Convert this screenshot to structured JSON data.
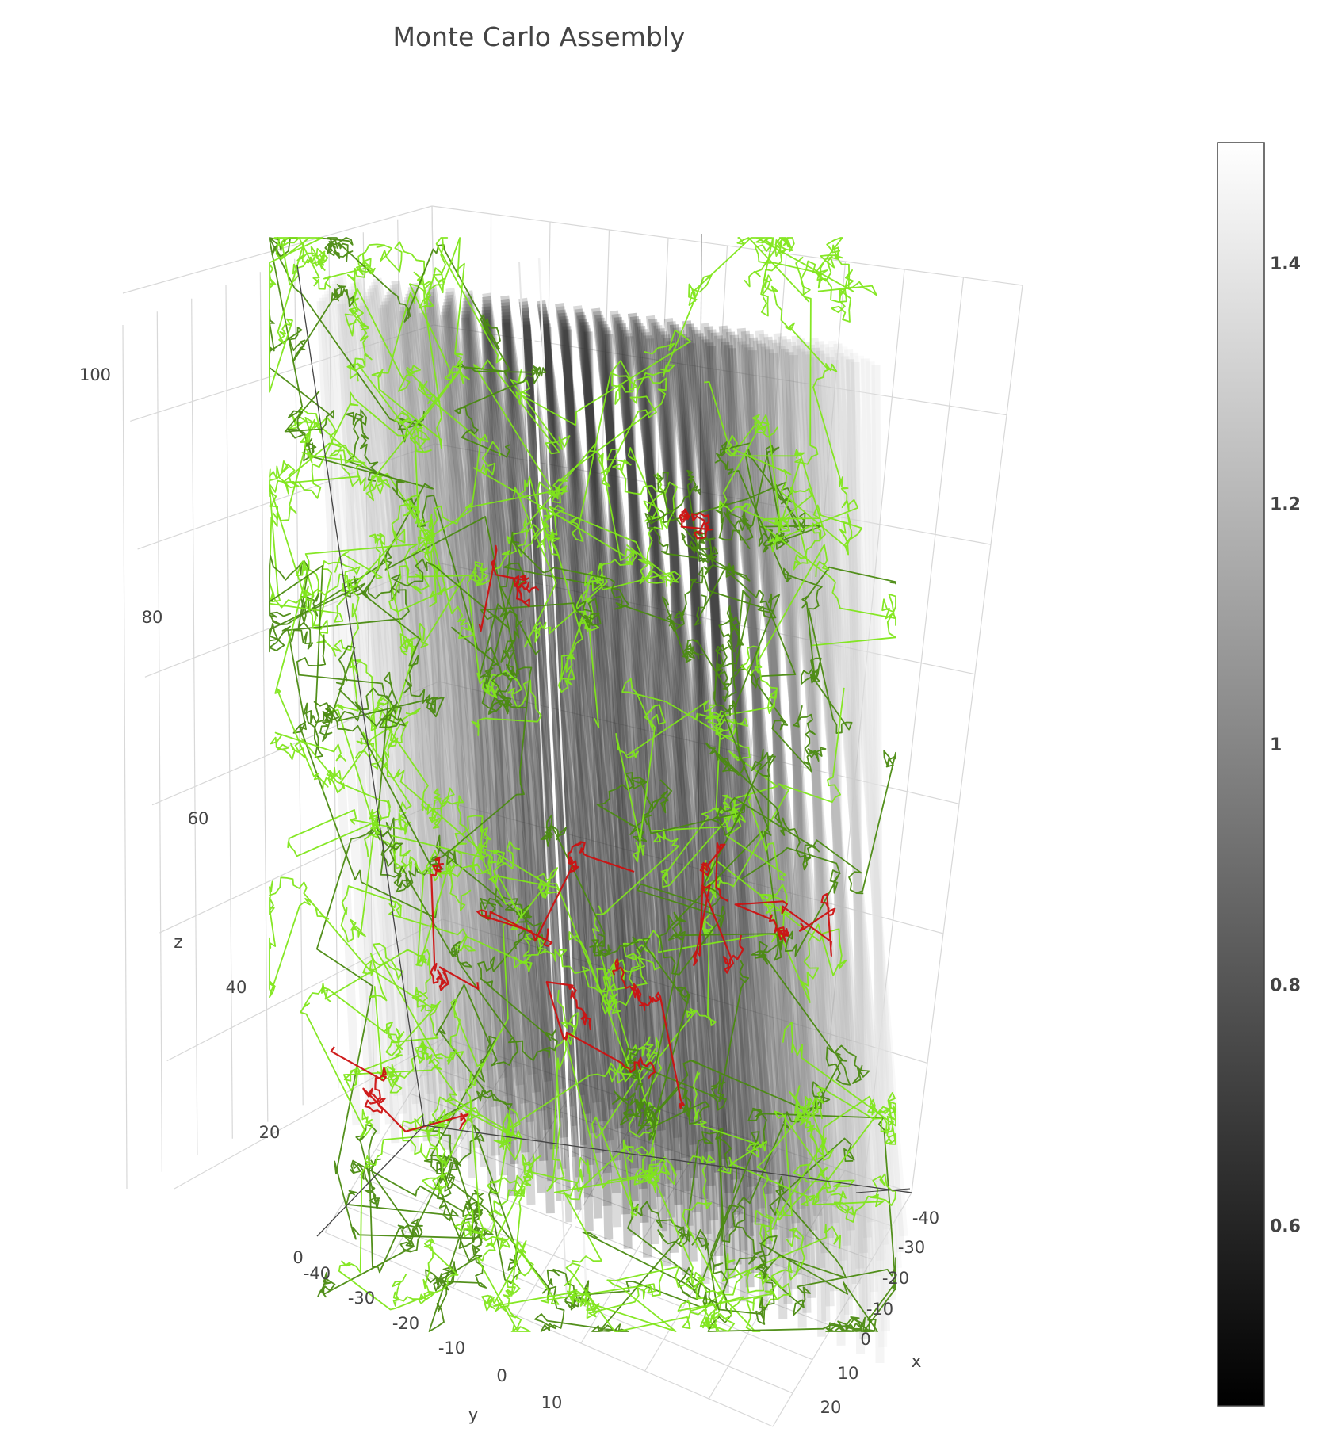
{
  "chart_data": {
    "type": "scatter3d",
    "title": "Monte Carlo Assembly",
    "axes": {
      "x": {
        "label": "x",
        "range": [
          -45,
          25
        ],
        "ticks": [
          -40,
          -30,
          -20,
          -10,
          0,
          10,
          20
        ]
      },
      "y": {
        "label": "y",
        "range": [
          -45,
          15
        ],
        "ticks": [
          -40,
          -30,
          -20,
          -10,
          0,
          10
        ]
      },
      "z": {
        "label": "z",
        "range": [
          0,
          105
        ],
        "ticks": [
          0,
          20,
          40,
          60,
          80,
          100
        ]
      }
    },
    "grid": true,
    "colorbar": {
      "colorscale": "greys",
      "range": [
        0.45,
        1.5
      ],
      "ticks": [
        0.6,
        0.8,
        1,
        1.2,
        1.4
      ],
      "tick_labels": [
        "0.6",
        "0.8",
        "1",
        "1.2",
        "1.4"
      ],
      "placement": "right"
    },
    "series": [
      {
        "kind": "columns",
        "description_color": "#9a9a9a",
        "color_scale_min": "#000000",
        "color_scale_max": "#ffffff"
      },
      {
        "kind": "walks",
        "color": "#7fe61a"
      },
      {
        "kind": "walks",
        "color": "#c81010"
      }
    ]
  },
  "colors": {
    "walk_green": "#7fe61a",
    "walk_dark_green": "#4a8a10",
    "walk_red": "#cc1111",
    "grid": "#d8d8d8",
    "axis_line": "#444444"
  }
}
